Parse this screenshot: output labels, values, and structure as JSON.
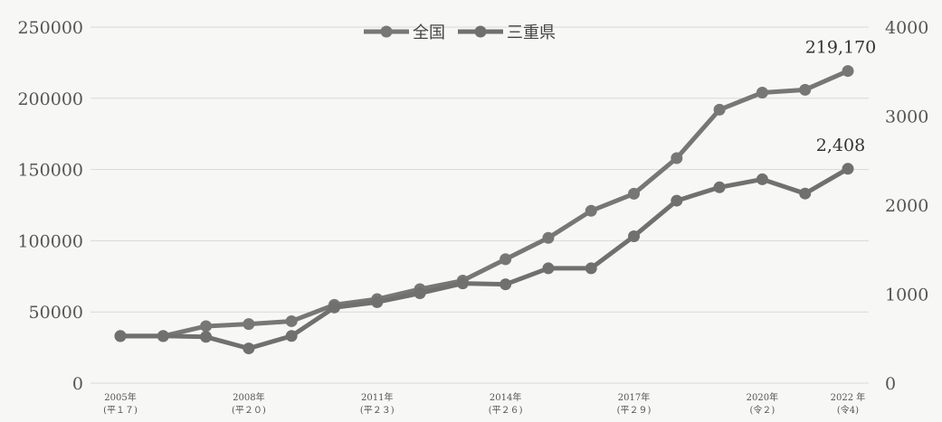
{
  "chart_data": {
    "type": "line",
    "title": "",
    "x": [
      "2005",
      "2006",
      "2007",
      "2008",
      "2009",
      "2010",
      "2011",
      "2012",
      "2013",
      "2014",
      "2015",
      "2016",
      "2017",
      "2018",
      "2019",
      "2020",
      "2021",
      "2022"
    ],
    "x_tick_labels": [
      {
        "index": 0,
        "line1": "2005年",
        "line2": "(平１７)"
      },
      {
        "index": 3,
        "line1": "2008年",
        "line2": "(平２０)"
      },
      {
        "index": 6,
        "line1": "2011年",
        "line2": "(平２３)"
      },
      {
        "index": 9,
        "line1": "2014年",
        "line2": "(平２６)"
      },
      {
        "index": 12,
        "line1": "2017年",
        "line2": "(平２９)"
      },
      {
        "index": 15,
        "line1": "2020年",
        "line2": "(令２)"
      },
      {
        "index": 17,
        "line1": "2022 年",
        "line2": "(令4)"
      }
    ],
    "y_left": {
      "min": 0,
      "max": 250000,
      "ticks": [
        "0",
        "50000",
        "100000",
        "150000",
        "200000",
        "250000"
      ]
    },
    "y_right": {
      "min": 0,
      "max": 4000,
      "ticks": [
        "0",
        "1000",
        "2000",
        "3000",
        "4000"
      ]
    },
    "grid": true,
    "legend_position": "top-center",
    "series": [
      {
        "name": "全国",
        "axis": "left",
        "color": "#777777",
        "values": [
          33000,
          33000,
          40000,
          41500,
          43500,
          55000,
          59000,
          66000,
          72000,
          87000,
          102000,
          121000,
          133000,
          158000,
          192000,
          204000,
          206000,
          219170
        ],
        "end_label": "219,170"
      },
      {
        "name": "三重県",
        "axis": "right",
        "color": "#707070",
        "values": [
          530,
          530,
          520,
          390,
          530,
          850,
          910,
          1010,
          1120,
          1110,
          1290,
          1290,
          1650,
          2050,
          2200,
          2290,
          2130,
          2408
        ],
        "end_label": "2,408"
      }
    ]
  }
}
